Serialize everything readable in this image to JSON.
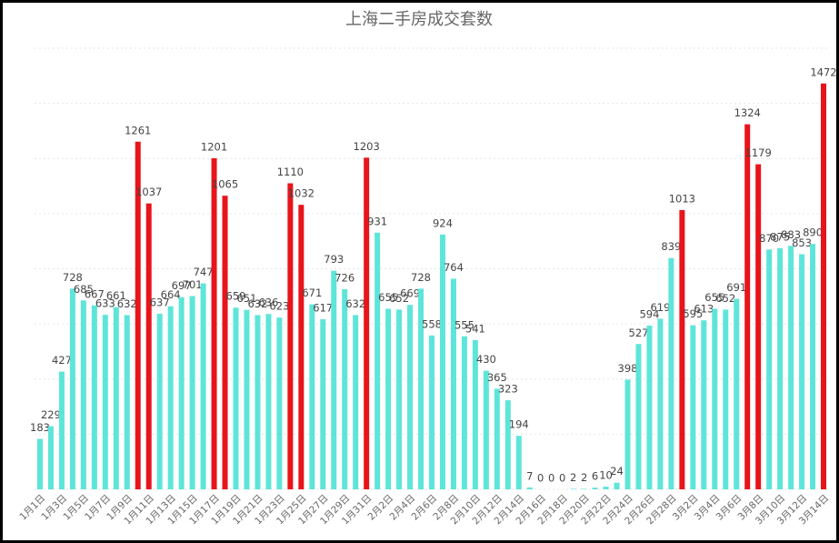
{
  "chart_data": {
    "type": "bar",
    "title": "上海二手房成交套数",
    "categories": [
      "1月1日",
      null,
      "1月3日",
      null,
      "1月5日",
      null,
      "1月7日",
      null,
      "1月9日",
      null,
      "1月11日",
      null,
      "1月13日",
      null,
      "1月15日",
      null,
      "1月17日",
      null,
      "1月19日",
      null,
      "1月21日",
      null,
      "1月23日",
      null,
      "1月25日",
      null,
      "1月27日",
      null,
      "1月29日",
      null,
      "1月31日",
      null,
      "2月2日",
      null,
      "2月4日",
      null,
      "2月6日",
      null,
      "2月8日",
      null,
      "2月10日",
      null,
      "2月12日",
      null,
      "2月14日",
      null,
      "2月16日",
      null,
      "2月18日",
      null,
      "2月20日",
      null,
      "2月22日",
      null,
      "2月24日",
      null,
      "2月26日",
      null,
      "2月28日",
      null,
      "3月2日",
      null,
      "3月4日",
      null,
      "3月6日",
      null,
      "3月8日",
      null,
      "3月10日",
      null,
      "3月12日",
      null,
      "3月14日"
    ],
    "values": [
      183,
      229,
      427,
      728,
      685,
      667,
      633,
      661,
      632,
      1261,
      1037,
      637,
      664,
      697,
      701,
      747,
      1201,
      1065,
      659,
      651,
      632,
      636,
      623,
      1110,
      1032,
      671,
      617,
      793,
      726,
      632,
      1203,
      931,
      655,
      652,
      669,
      728,
      558,
      924,
      764,
      555,
      541,
      430,
      365,
      323,
      194,
      7,
      0,
      0,
      0,
      2,
      2,
      6,
      10,
      24,
      398,
      527,
      594,
      619,
      839,
      1013,
      595,
      613,
      655,
      652,
      691,
      1324,
      1179,
      870,
      875,
      883,
      853,
      890,
      1472
    ],
    "colors": [
      "#5ee5d9",
      "#5ee5d9",
      "#5ee5d9",
      "#5ee5d9",
      "#5ee5d9",
      "#5ee5d9",
      "#5ee5d9",
      "#5ee5d9",
      "#5ee5d9",
      "#e8141a",
      "#e8141a",
      "#5ee5d9",
      "#5ee5d9",
      "#5ee5d9",
      "#5ee5d9",
      "#5ee5d9",
      "#e8141a",
      "#e8141a",
      "#5ee5d9",
      "#5ee5d9",
      "#5ee5d9",
      "#5ee5d9",
      "#5ee5d9",
      "#e8141a",
      "#e8141a",
      "#5ee5d9",
      "#5ee5d9",
      "#5ee5d9",
      "#5ee5d9",
      "#5ee5d9",
      "#e8141a",
      "#5ee5d9",
      "#5ee5d9",
      "#5ee5d9",
      "#5ee5d9",
      "#5ee5d9",
      "#5ee5d9",
      "#5ee5d9",
      "#5ee5d9",
      "#5ee5d9",
      "#5ee5d9",
      "#5ee5d9",
      "#5ee5d9",
      "#5ee5d9",
      "#5ee5d9",
      "#5ee5d9",
      "#5ee5d9",
      "#5ee5d9",
      "#5ee5d9",
      "#5ee5d9",
      "#5ee5d9",
      "#5ee5d9",
      "#5ee5d9",
      "#5ee5d9",
      "#5ee5d9",
      "#5ee5d9",
      "#5ee5d9",
      "#5ee5d9",
      "#5ee5d9",
      "#e8141a",
      "#5ee5d9",
      "#5ee5d9",
      "#5ee5d9",
      "#5ee5d9",
      "#5ee5d9",
      "#e8141a",
      "#e8141a",
      "#5ee5d9",
      "#5ee5d9",
      "#5ee5d9",
      "#5ee5d9",
      "#5ee5d9",
      "#e8141a"
    ],
    "ylim": [
      0,
      1600
    ],
    "yticks": [
      0,
      200,
      400,
      600,
      800,
      1000,
      1200,
      1400,
      1600
    ],
    "grid": true
  }
}
